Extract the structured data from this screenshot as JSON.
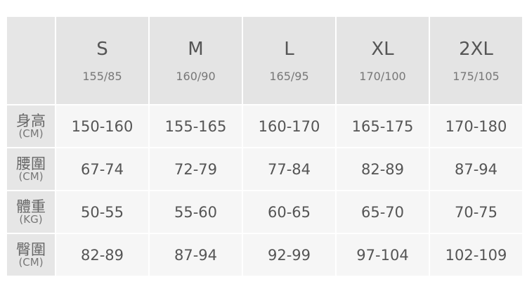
{
  "sizes": [
    {
      "label": "S",
      "spec": "155/85"
    },
    {
      "label": "M",
      "spec": "160/90"
    },
    {
      "label": "L",
      "spec": "165/95"
    },
    {
      "label": "XL",
      "spec": "170/100"
    },
    {
      "label": "2XL",
      "spec": "175/105"
    }
  ],
  "rows": [
    {
      "name": "身高",
      "unit": "(CM)",
      "values": [
        "150-160",
        "155-165",
        "160-170",
        "165-175",
        "170-180"
      ]
    },
    {
      "name": "腰圍",
      "unit": "(CM)",
      "values": [
        "67-74",
        "72-79",
        "77-84",
        "82-89",
        "87-94"
      ]
    },
    {
      "name": "體重",
      "unit": "(KG)",
      "values": [
        "50-55",
        "55-60",
        "60-65",
        "65-70",
        "70-75"
      ]
    },
    {
      "name": "臀圍",
      "unit": "(CM)",
      "values": [
        "82-89",
        "87-94",
        "92-99",
        "97-104",
        "102-109"
      ]
    }
  ]
}
